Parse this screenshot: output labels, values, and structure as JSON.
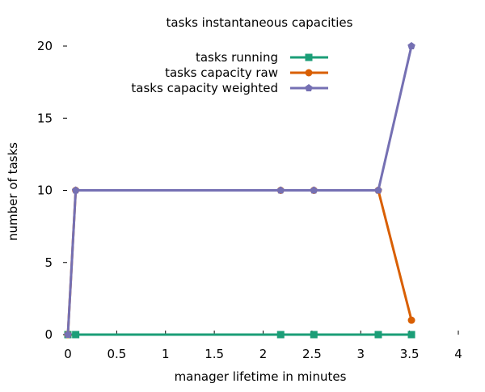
{
  "chart_data": {
    "type": "line",
    "title": "tasks instantaneous capacities",
    "xlabel": "manager lifetime in minutes",
    "ylabel": "number of tasks",
    "xlim": [
      0,
      4
    ],
    "ylim": [
      0,
      20
    ],
    "xticks": [
      0,
      0.5,
      1,
      1.5,
      2,
      2.5,
      3,
      3.5,
      4
    ],
    "xtick_labels": [
      "0",
      "0.5",
      "1",
      "1.5",
      "2",
      "2.5",
      "3",
      "3.5",
      "4"
    ],
    "yticks": [
      0,
      5,
      10,
      15,
      20
    ],
    "ytick_labels": [
      "0",
      "5",
      "10",
      "15",
      "20"
    ],
    "grid": false,
    "legend_position": "top-right",
    "series": [
      {
        "name": "tasks running",
        "color": "#1b9e77",
        "marker": "square",
        "x": [
          0,
          0.08,
          2.18,
          2.52,
          3.18,
          3.52
        ],
        "y": [
          0,
          0,
          0,
          0,
          0,
          0
        ]
      },
      {
        "name": "tasks capacity raw",
        "color": "#d95f02",
        "marker": "circle",
        "x": [
          0,
          0.08,
          2.18,
          2.52,
          3.18,
          3.52
        ],
        "y": [
          0,
          10,
          10,
          10,
          10,
          1
        ]
      },
      {
        "name": "tasks capacity weighted",
        "color": "#7570b3",
        "marker": "pentagon",
        "x": [
          0,
          0.08,
          2.18,
          2.52,
          3.18,
          3.52
        ],
        "y": [
          0,
          10,
          10,
          10,
          10,
          20
        ]
      }
    ]
  }
}
